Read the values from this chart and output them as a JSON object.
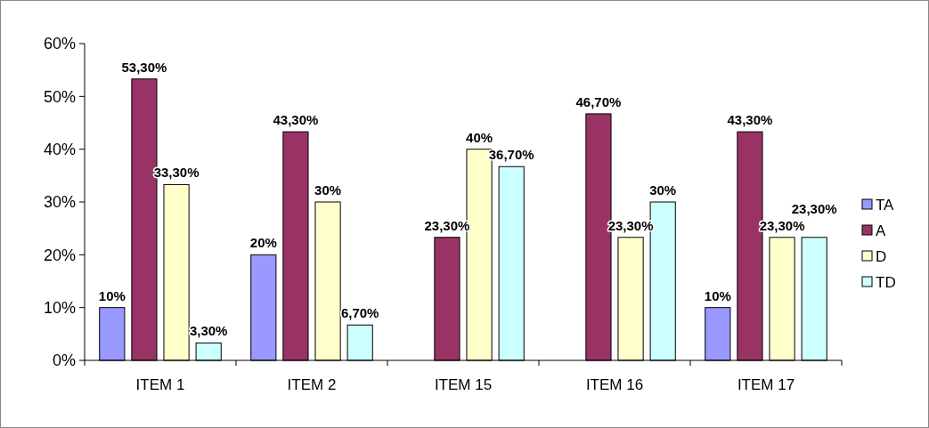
{
  "chart_data": {
    "type": "bar",
    "categories": [
      "ITEM 1",
      "ITEM 2",
      "ITEM 15",
      "ITEM 16",
      "ITEM 17"
    ],
    "series": [
      {
        "name": "TA",
        "color": "#9999ff",
        "values": [
          10,
          20,
          null,
          null,
          10
        ],
        "value_labels": [
          "10%",
          "20%",
          null,
          null,
          "10%"
        ]
      },
      {
        "name": "A",
        "color": "#993366",
        "values": [
          53.3,
          43.3,
          23.3,
          46.7,
          43.3
        ],
        "value_labels": [
          "53,30%",
          "43,30%",
          "23,30%",
          "46,70%",
          "43,30%"
        ]
      },
      {
        "name": "D",
        "color": "#ffffcc",
        "values": [
          33.3,
          30,
          40,
          23.3,
          23.3
        ],
        "value_labels": [
          "33,30%",
          "30%",
          "40%",
          "23,30%",
          "23,30%"
        ]
      },
      {
        "name": "TD",
        "color": "#ccffff",
        "values": [
          3.3,
          6.7,
          36.7,
          30,
          23.3
        ],
        "value_labels": [
          "3,30%",
          "6,70%",
          "36,70%",
          "30%",
          "23,30%"
        ]
      }
    ],
    "ylim": [
      0,
      60
    ],
    "yticks": [
      {
        "value": 0,
        "label": "0%"
      },
      {
        "value": 10,
        "label": "10%"
      },
      {
        "value": 20,
        "label": "20%"
      },
      {
        "value": 30,
        "label": "30%"
      },
      {
        "value": 40,
        "label": "40%"
      },
      {
        "value": 50,
        "label": "50%"
      },
      {
        "value": 60,
        "label": "60%"
      }
    ],
    "grid": false,
    "legend": "right"
  }
}
